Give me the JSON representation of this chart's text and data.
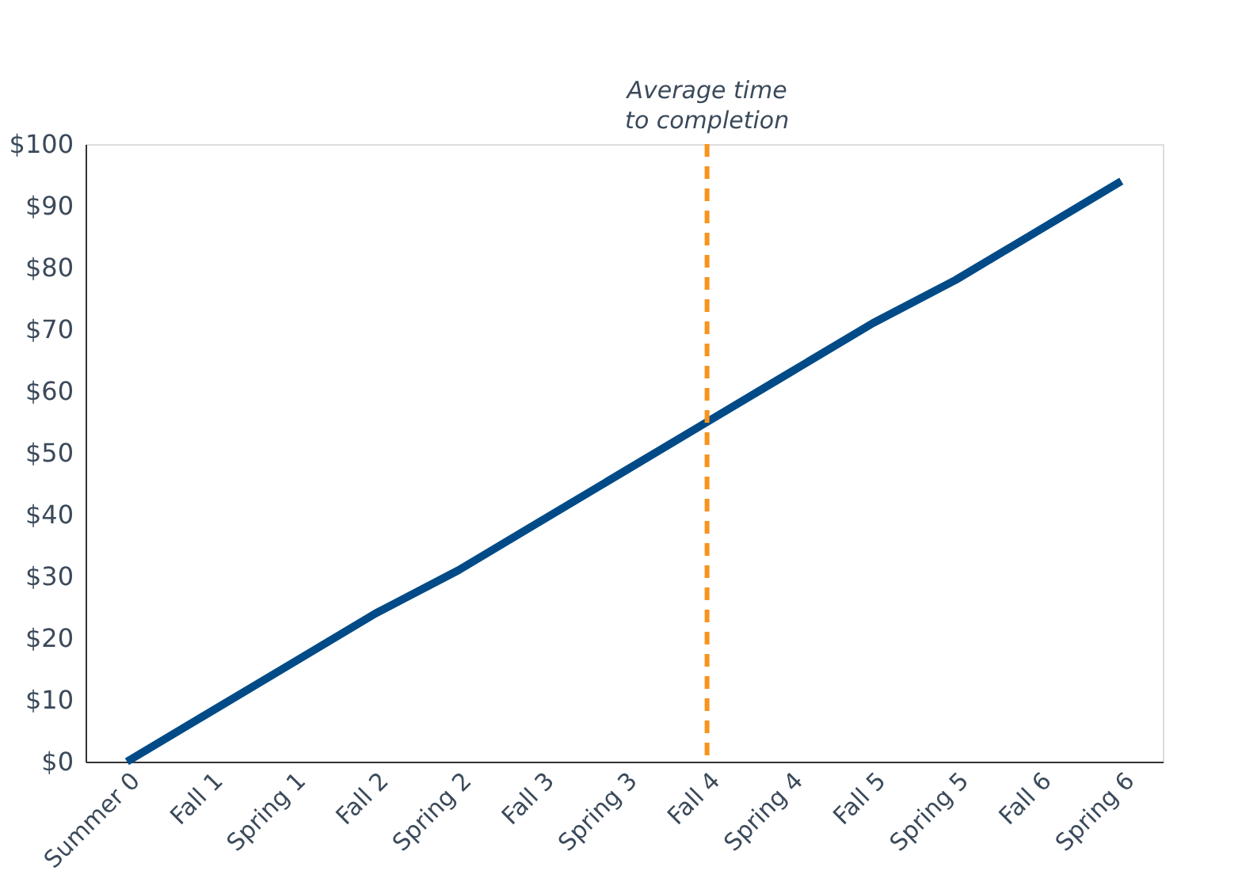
{
  "chart_data": {
    "type": "line",
    "categories": [
      "Summer 0",
      "Fall 1",
      "Spring 1",
      "Fall 2",
      "Spring 2",
      "Fall 3",
      "Spring 3",
      "Fall 4",
      "Spring 4",
      "Fall 5",
      "Spring 5",
      "Fall 6",
      "Spring 6"
    ],
    "series": [
      {
        "color": "#004b87",
        "values": [
          0,
          8,
          16,
          24,
          31,
          39,
          47,
          55,
          63,
          71,
          78,
          86,
          94
        ]
      }
    ],
    "ylim": [
      0,
      100
    ],
    "yticks": [
      {
        "value": 0,
        "label": "$0"
      },
      {
        "value": 10,
        "label": "$10"
      },
      {
        "value": 20,
        "label": "$20"
      },
      {
        "value": 30,
        "label": "$30"
      },
      {
        "value": 40,
        "label": "$40"
      },
      {
        "value": 50,
        "label": "$50"
      },
      {
        "value": 60,
        "label": "$60"
      },
      {
        "value": 70,
        "label": "$70"
      },
      {
        "value": 80,
        "label": "$80"
      },
      {
        "value": 90,
        "label": "$90"
      },
      {
        "value": 100,
        "label": "$100"
      }
    ],
    "ref_lines": [
      {
        "axis": "x",
        "value": "Fall 4",
        "label": "Average time to completion",
        "color": "#f7941d",
        "line_style": "dashed"
      }
    ],
    "grid": false,
    "marker": "none",
    "line_style": "solid"
  }
}
